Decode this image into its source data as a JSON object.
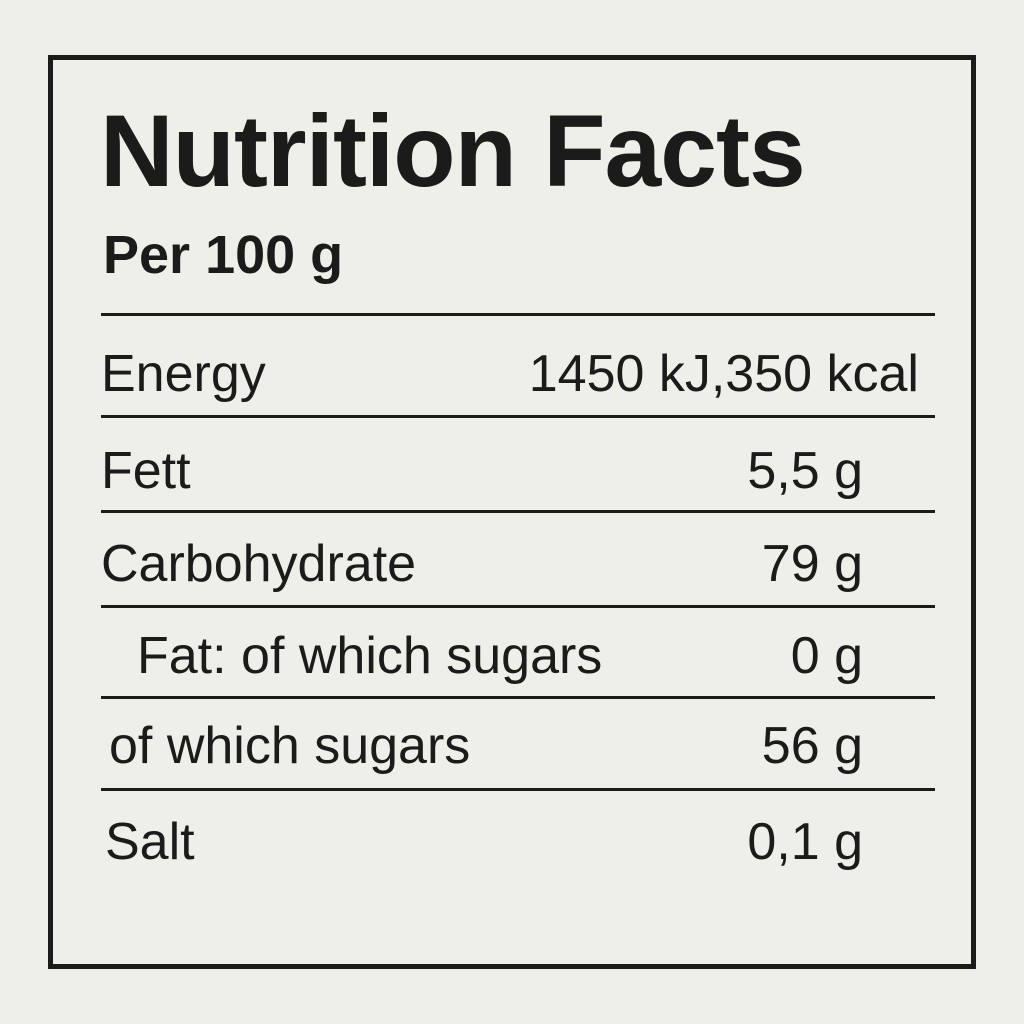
{
  "label": {
    "title": "Nutrition Facts",
    "serving": "Per 100 g",
    "rows": [
      {
        "name": "Energy",
        "value": "1450 kJ,350 kcal"
      },
      {
        "name": "Fett",
        "value": "5,5 g"
      },
      {
        "name": "Carbohydrate",
        "value": "79 g"
      },
      {
        "name": "Fat: of which sugars",
        "value": "0 g"
      },
      {
        "name": "of which sugars",
        "value": "56 g"
      },
      {
        "name": "Salt",
        "value": "0,1 g"
      }
    ]
  }
}
